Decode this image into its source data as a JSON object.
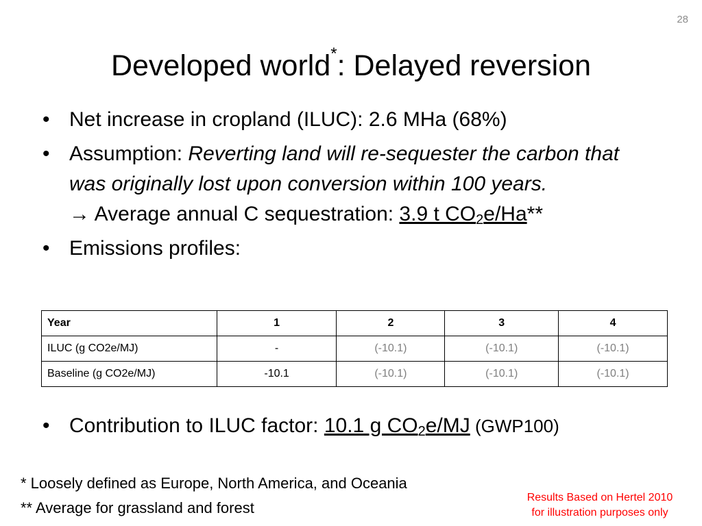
{
  "slide_number": "28",
  "title": {
    "main": "Developed world",
    "sup": "*",
    "rest": ": Delayed reversion"
  },
  "bullets": [
    {
      "text": "Net increase in cropland (ILUC): 2.6 MHa (68%)"
    },
    {
      "lead": "Assumption: ",
      "italic": "Reverting land will re-sequester the carbon that was originally lost upon conversion within 100 years.",
      "arrow_line": "→ Average annual C sequestration: ",
      "value_pre": "3.9 t CO",
      "value_sub": "2",
      "value_post": "e/Ha",
      "suffix": "**"
    },
    {
      "text": "Emissions profiles:"
    }
  ],
  "table": {
    "headers": [
      "Year",
      "1",
      "2",
      "3",
      "4"
    ],
    "rows": [
      {
        "label": "ILUC (g CO2e/MJ)",
        "cells": [
          "-",
          "(-10.1)",
          "(-10.1)",
          "(-10.1)"
        ]
      },
      {
        "label": "Baseline (g CO2e/MJ)",
        "cells": [
          "-10.1",
          "(-10.1)",
          "(-10.1)",
          "(-10.1)"
        ]
      }
    ]
  },
  "contribution": {
    "lead": "Contribution to ILUC factor: ",
    "value_pre": "10.1 g CO",
    "value_sub": "2",
    "value_post": "e/MJ",
    "suffix": " (GWP100)"
  },
  "footnotes": [
    "* Loosely defined as Europe, North America, and Oceania",
    "** Average for grassland and forest"
  ],
  "credit": {
    "line1": "Results Based on Hertel 2010",
    "line2": "for illustration purposes only"
  },
  "bullet_symbol": "•",
  "colors": {
    "gray_value": "#7f7f7f",
    "credit_red": "#ff0000"
  }
}
